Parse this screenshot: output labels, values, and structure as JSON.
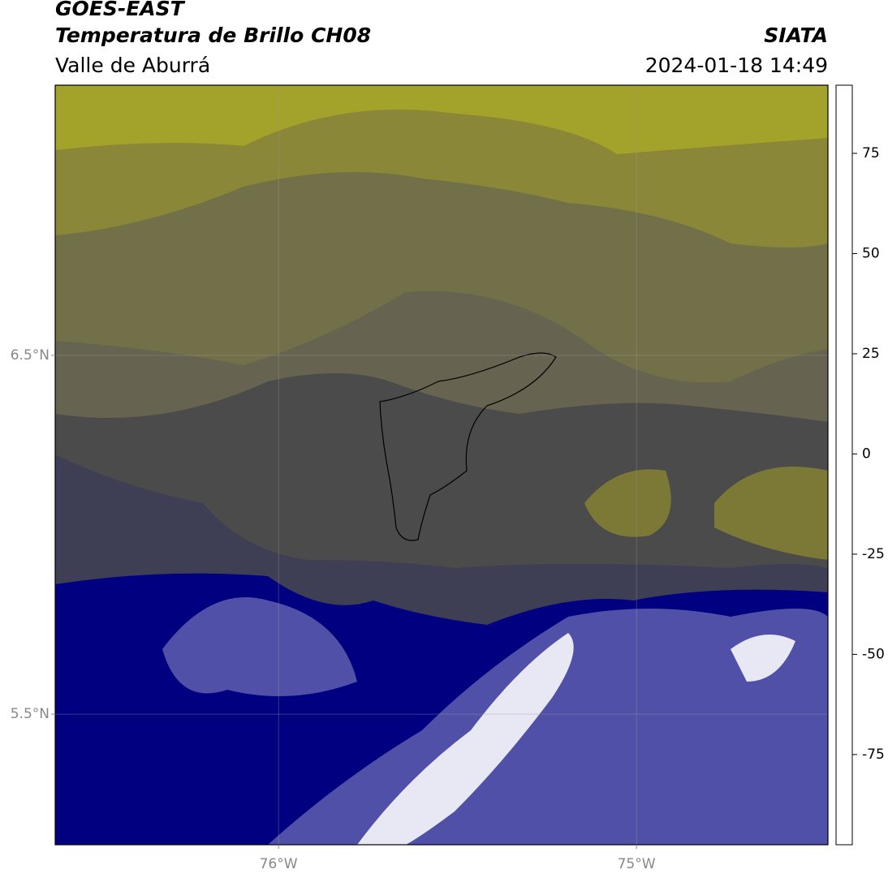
{
  "header": {
    "title": "GOES-EAST",
    "subtitle": "Temperatura de Brillo CH08",
    "region": "Valle de Aburrá",
    "source": "SIATA",
    "timestamp": "2024-01-18 14:49"
  },
  "map": {
    "latlim": [
      5.136,
      7.253
    ],
    "lonlim": [
      -76.624,
      -74.465
    ],
    "latticks": [
      {
        "value": 6.5,
        "label": "6.5°N"
      },
      {
        "value": 5.5,
        "label": "5.5°N"
      }
    ],
    "lonticks": [
      {
        "value": -76,
        "label": "76°W"
      },
      {
        "value": -75,
        "label": "75°W"
      }
    ],
    "grid": true
  },
  "colorbar": {
    "lim": [
      -97.5,
      92
    ],
    "ticks": [
      75,
      50,
      25,
      0,
      -25,
      -50,
      -75
    ],
    "stops": [
      {
        "value": -97.5,
        "color": "#ffffff"
      },
      {
        "value": -93,
        "color": "#ffffff"
      },
      {
        "value": -93,
        "color": "#00e8d8"
      },
      {
        "value": -85,
        "color": "#30b090"
      },
      {
        "value": -78,
        "color": "#3a9a50"
      },
      {
        "value": -65,
        "color": "#4a8a30"
      },
      {
        "value": -58,
        "color": "#b0d0a0"
      },
      {
        "value": -52,
        "color": "#ffffff"
      },
      {
        "value": -45,
        "color": "#9090c8"
      },
      {
        "value": -35,
        "color": "#3030a0"
      },
      {
        "value": -28,
        "color": "#000080"
      },
      {
        "value": -25,
        "color": "#3a3a50"
      },
      {
        "value": -22,
        "color": "#7a7830"
      },
      {
        "value": -15,
        "color": "#a0a020"
      },
      {
        "value": -12,
        "color": "#ffff00"
      },
      {
        "value": -6,
        "color": "#ffa000"
      },
      {
        "value": 0,
        "color": "#ff6000"
      },
      {
        "value": 8,
        "color": "#ff0000"
      },
      {
        "value": 8,
        "color": "#000000"
      },
      {
        "value": 92,
        "color": "#000000"
      }
    ]
  }
}
